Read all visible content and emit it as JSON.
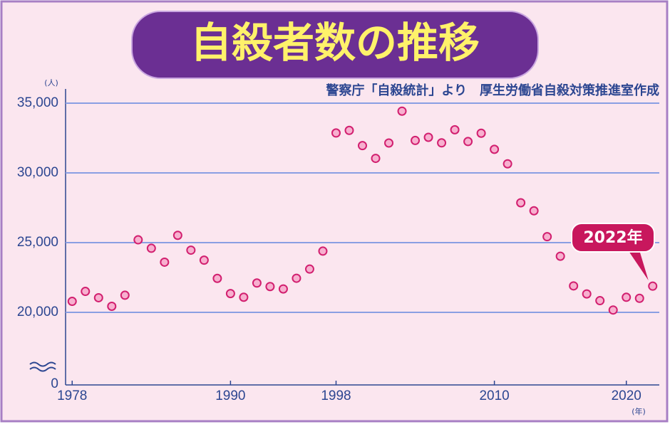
{
  "chart_data": {
    "type": "line",
    "title": "自殺者数の推移",
    "subtitle": "警察庁「自殺統計」より　厚生労働省自殺対策推進室作成",
    "y_unit": "(人)",
    "x_unit": "(年)",
    "annotation": "2022年",
    "x": [
      1978,
      1979,
      1980,
      1981,
      1982,
      1983,
      1984,
      1985,
      1986,
      1987,
      1988,
      1989,
      1990,
      1991,
      1992,
      1993,
      1994,
      1995,
      1996,
      1997,
      1998,
      1999,
      2000,
      2001,
      2002,
      2003,
      2004,
      2005,
      2006,
      2007,
      2008,
      2009,
      2010,
      2011,
      2012,
      2013,
      2014,
      2015,
      2016,
      2017,
      2018,
      2019,
      2020,
      2021,
      2022
    ],
    "series": [
      {
        "color": "#d21f6f",
        "values": [
          20788,
          21503,
          21048,
          20434,
          21228,
          25202,
          24596,
          23599,
          25524,
          24460,
          23742,
          22436,
          21346,
          21084,
          22104,
          21851,
          21679,
          22445,
          23104,
          24391,
          32863,
          33048,
          31957,
          31042,
          32143,
          34427,
          32325,
          32552,
          32155,
          33093,
          32249,
          32845,
          31690,
          30651,
          27858,
          27283,
          25427,
          24025,
          21897,
          21321,
          20840,
          20169,
          21081,
          21007,
          21881
        ]
      }
    ],
    "xlim": [
      1977.5,
      2022.5
    ],
    "xticks": [
      1978,
      1990,
      1998,
      2010,
      2020
    ],
    "ylim": [
      0,
      36000
    ],
    "yticks": [
      {
        "value": 0,
        "label": "0"
      },
      {
        "value": 20000,
        "label": "20,000"
      },
      {
        "value": 25000,
        "label": "25,000"
      },
      {
        "value": 30000,
        "label": "30,000"
      },
      {
        "value": 35000,
        "label": "35,000"
      }
    ],
    "grid": true
  }
}
